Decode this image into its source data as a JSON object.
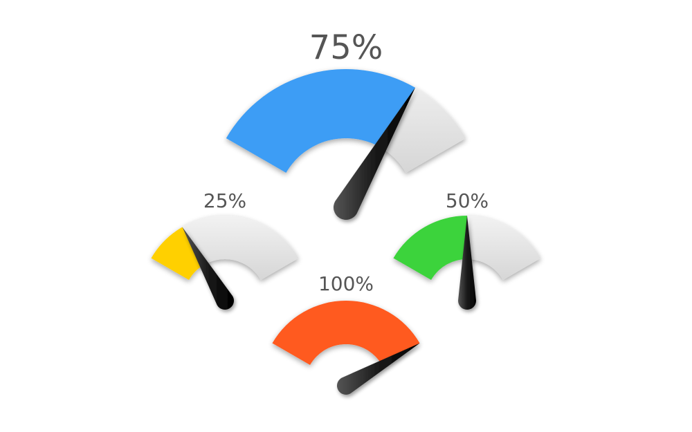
{
  "chart_data": {
    "type": "gauge",
    "gauges": [
      {
        "label": "75%",
        "value": 75,
        "color": "#3d9df5"
      },
      {
        "label": "25%",
        "value": 25,
        "color": "#ffd000"
      },
      {
        "label": "50%",
        "value": 50,
        "color": "#3cd33c"
      },
      {
        "label": "100%",
        "value": 100,
        "color": "#ff5a1f"
      }
    ],
    "track_color": "#e2e2e2",
    "needle_color": "#111111"
  }
}
